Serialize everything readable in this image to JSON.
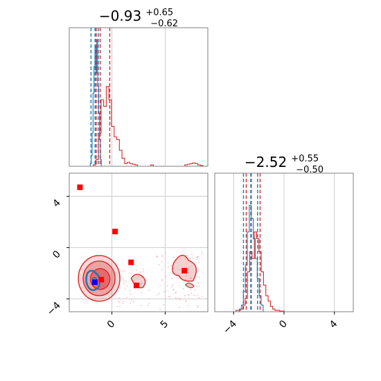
{
  "chart_data": {
    "type": "corner",
    "grid": true,
    "parameters": [
      {
        "title": {
          "main": "−0.93",
          "sup": "+0.65",
          "sub": "−0.62"
        }
      },
      {
        "title": {
          "main": "−2.52",
          "sup": "+0.55",
          "sub": "−0.50"
        }
      }
    ],
    "xlim": [
      [
        -4.0,
        9.0
      ],
      [
        -5.5,
        5.5
      ]
    ],
    "ylim_2d": [
      -5.0,
      5.8
    ],
    "x_ticks": [
      [
        0,
        5
      ],
      [
        -4,
        0,
        4
      ]
    ],
    "y_ticks": [
      4,
      0,
      -4
    ],
    "x_tick_labels": [
      [
        "0",
        "5"
      ],
      [
        "−4",
        "0",
        "4"
      ]
    ],
    "y_tick_labels": [
      "4",
      "0",
      "−4"
    ],
    "colors": {
      "blue": "#1f77b4",
      "red": "#d62728",
      "blue_marker": "#0000ff",
      "red_marker": "#ff0000"
    },
    "series": [
      {
        "color": "blue",
        "quantile_lines": {
          "x": [
            -1.96,
            -1.58,
            -1.28
          ],
          "y": [
            -3.22,
            -2.64,
            -2.1
          ]
        },
        "hist1": {
          "bins_x": [
            -2.2,
            -0.9
          ],
          "values": [
            0,
            0,
            0.02,
            0.08,
            0.25,
            0.55,
            0.75,
            0.9,
            0.7,
            0.95,
            0.6,
            0.4,
            0.2,
            0.05,
            0
          ]
        },
        "hist2": {
          "bins_x": [
            -3.7,
            -1.5
          ],
          "values": [
            0,
            0.02,
            0.05,
            0.15,
            0.35,
            0.6,
            0.8,
            0.7,
            0.55,
            0.4,
            0.25,
            0.12,
            0.05,
            0
          ]
        },
        "marker": {
          "x": -1.6,
          "y": -2.7
        }
      },
      {
        "color": "red",
        "quantile_lines": {
          "x": [
            -1.47,
            -1.1,
            -0.2
          ],
          "y": [
            -3.0,
            -2.6,
            -1.9
          ]
        },
        "hist1": {
          "bins_x": [
            -2.0,
            8.8
          ],
          "values": [
            0,
            0.01,
            0.05,
            0.25,
            0.5,
            0.45,
            0.6,
            0.5,
            0.3,
            0.22,
            0.2,
            0.12,
            0.06,
            0.02,
            0.03,
            0.02,
            0.015,
            0.01,
            0.0,
            0.0,
            0.0,
            0.0,
            0.0,
            0.01,
            0.0,
            0.0,
            0.0,
            0.0,
            0.0,
            0.0,
            0.0,
            0.0,
            0.0,
            0.0,
            0.0,
            0.0,
            0.01,
            0.015,
            0.02,
            0.025,
            0.02,
            0.01,
            0.005,
            0
          ]
        },
        "hist2": {
          "bins_x": [
            -4.0,
            0.2
          ],
          "values": [
            0,
            0.01,
            0.01,
            0.02,
            0.05,
            0.1,
            0.3,
            0.45,
            0.4,
            0.6,
            0.55,
            0.45,
            0.3,
            0.2,
            0.12,
            0.08,
            0.04,
            0.02,
            0.01,
            0.01,
            0.005,
            0.005,
            0
          ]
        },
        "markers": [
          {
            "x": -3.0,
            "y": 4.7
          },
          {
            "x": 0.3,
            "y": 1.25
          },
          {
            "x": 1.8,
            "y": -1.15
          },
          {
            "x": 2.3,
            "y": -2.95
          },
          {
            "x": 6.8,
            "y": -1.8
          },
          {
            "x": -1.0,
            "y": -2.5
          }
        ]
      }
    ]
  }
}
